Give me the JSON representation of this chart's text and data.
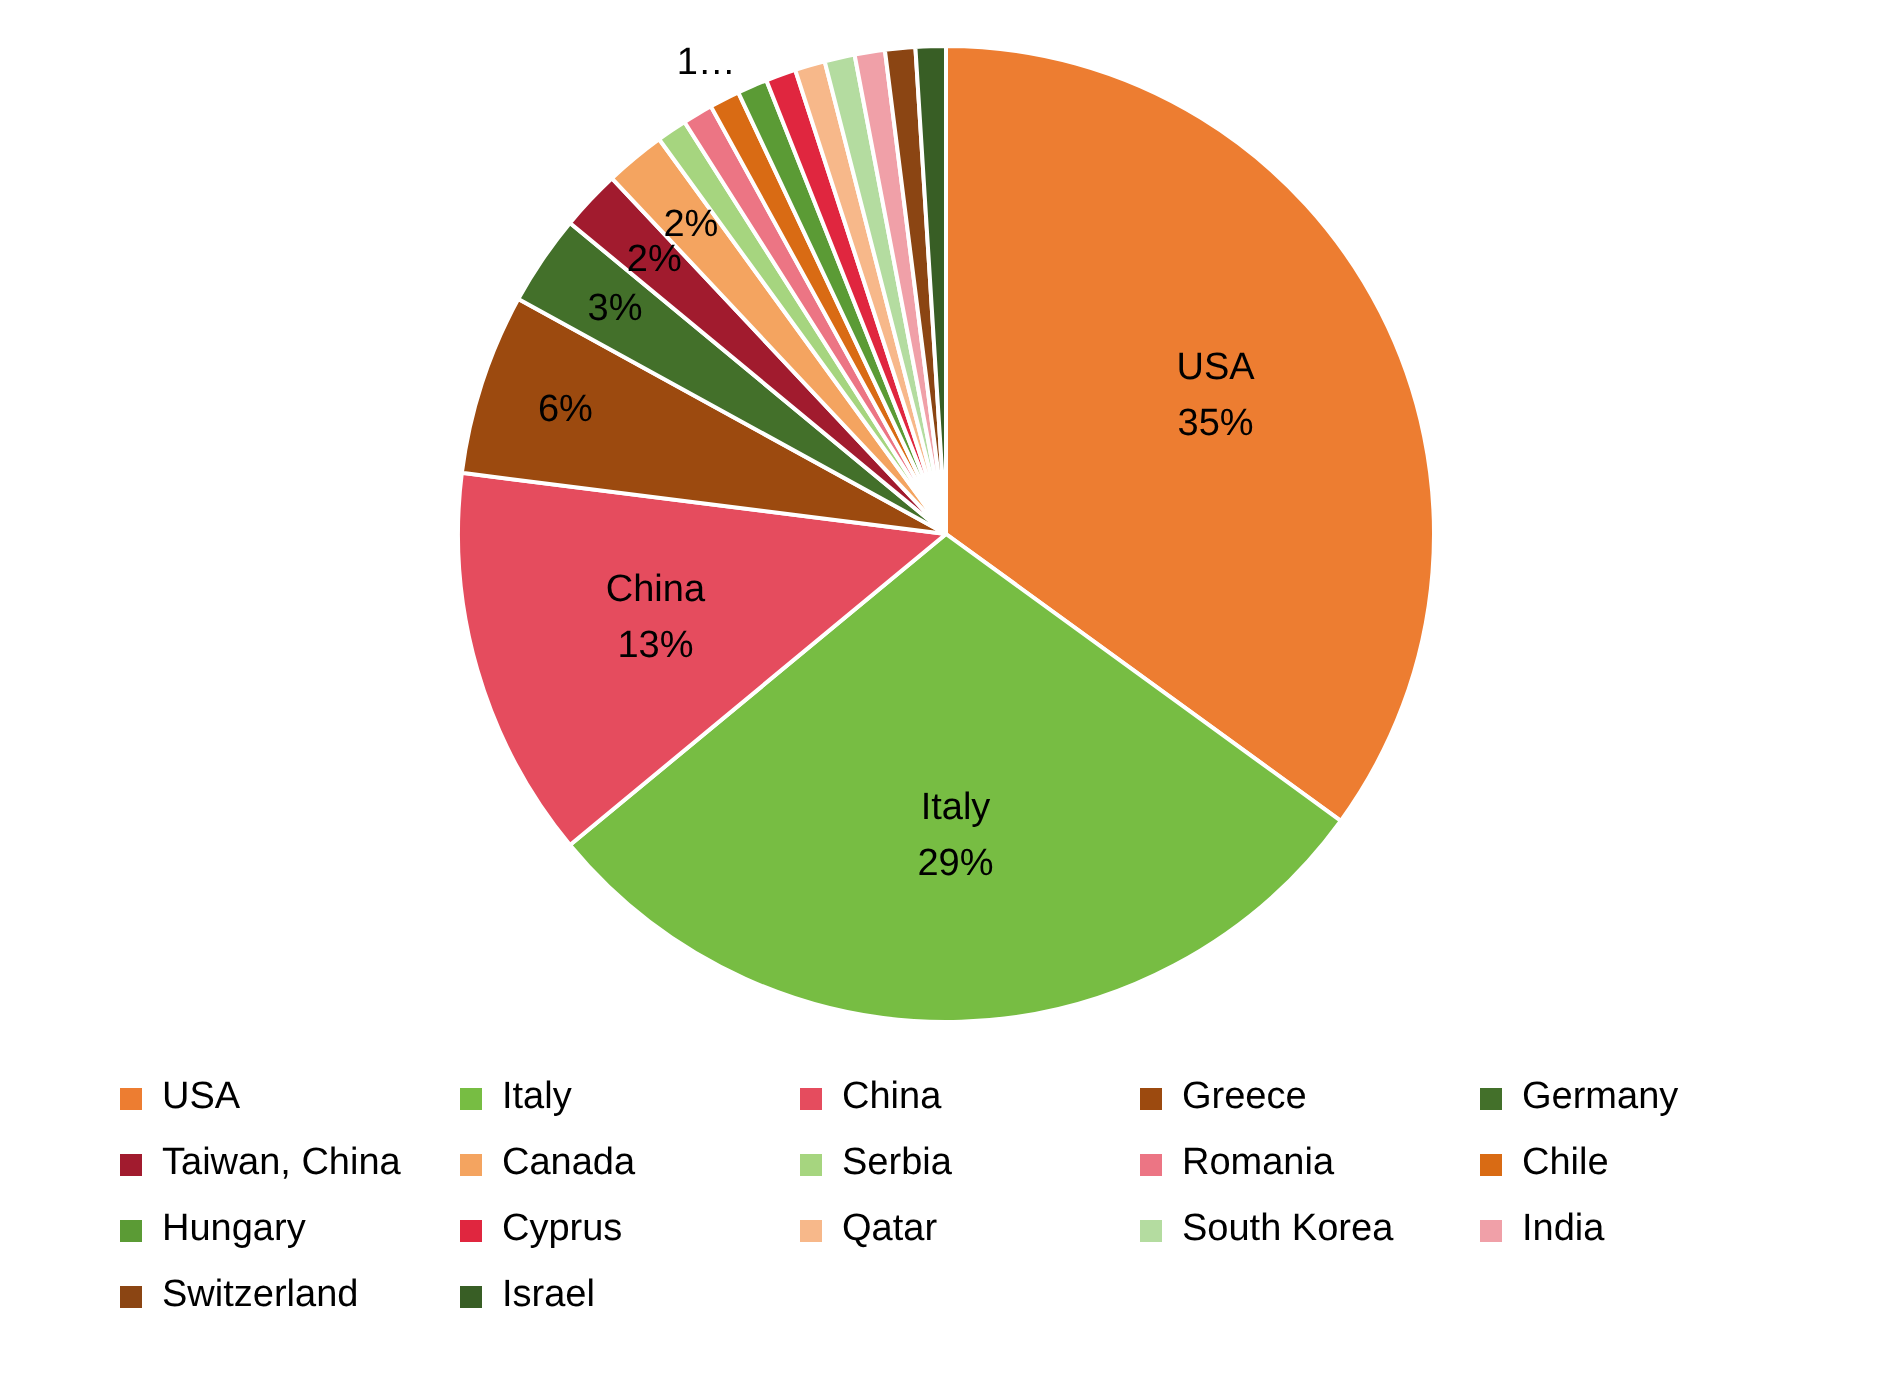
{
  "chart_data": {
    "type": "pie",
    "legend": "bottom",
    "categories": [
      "USA",
      "Italy",
      "China",
      "Greece",
      "Germany",
      "Taiwan, China",
      "Canada",
      "Serbia",
      "Romania",
      "Chile",
      "Hungary",
      "Cyprus",
      "Qatar",
      "South Korea",
      "India",
      "Switzerland",
      "Israel"
    ],
    "values": [
      35,
      29,
      13,
      6,
      3,
      2,
      2,
      1,
      1,
      1,
      1,
      1,
      1,
      1,
      1,
      1,
      1
    ],
    "colors": [
      "#ed7d31",
      "#77bd43",
      "#e54c5e",
      "#9c4a0f",
      "#43702a",
      "#a11b2e",
      "#f4a460",
      "#a6d57f",
      "#ec7584",
      "#d96b14",
      "#5b9b35",
      "#e0263f",
      "#f7b88a",
      "#b4dca0",
      "#f0a0a8",
      "#8b4513",
      "#385e25"
    ],
    "value_labels": [
      "USA\n35%",
      "Italy\n29%",
      "China\n13%",
      "6%",
      "3%",
      "2%",
      "2%",
      null,
      null,
      "1…",
      null,
      null,
      null,
      null,
      null,
      null,
      null
    ]
  }
}
